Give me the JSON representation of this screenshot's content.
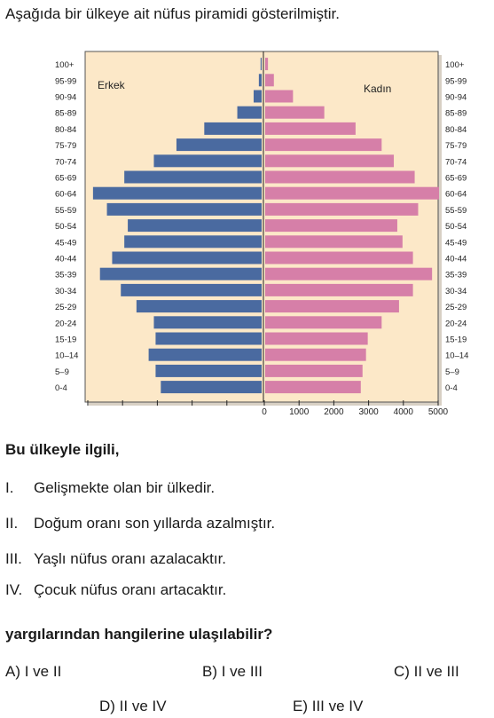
{
  "intro": "Aşağıda bir ülkeye ait nüfus piramidi gösterilmiştir.",
  "chart_data": {
    "type": "bar",
    "orientation": "horizontal",
    "chart_subtype": "population-pyramid",
    "categories": [
      "0-4",
      "5–9",
      "10–14",
      "15-19",
      "20-24",
      "25-29",
      "30-34",
      "35-39",
      "40-44",
      "45-49",
      "50-54",
      "55-59",
      "60-64",
      "65-69",
      "70-74",
      "75-79",
      "80-84",
      "85-89",
      "90-94",
      "95-99",
      "100+"
    ],
    "series": [
      {
        "name": "Erkek",
        "color": "#4a6aa0",
        "values": [
          2900,
          3050,
          3250,
          3050,
          3100,
          3600,
          4050,
          4650,
          4300,
          3950,
          3850,
          4450,
          4850,
          3950,
          3100,
          2450,
          1650,
          700,
          230,
          80,
          30
        ]
      },
      {
        "name": "Kadın",
        "color": "#d67fa8",
        "values": [
          2750,
          2800,
          2900,
          2950,
          3350,
          3850,
          4250,
          4800,
          4250,
          3950,
          3800,
          4400,
          5000,
          4300,
          3700,
          3350,
          2600,
          1700,
          800,
          250,
          80
        ]
      }
    ],
    "xticks": [
      0,
      1000,
      2000,
      3000,
      4000,
      5000
    ],
    "xlim": [
      0,
      5000
    ],
    "background_color": "#fce8c8",
    "legend_placement": "top-inside"
  },
  "lead": "Bu ülkeyle ilgili,",
  "statements": [
    {
      "num": "I.",
      "text": "Gelişmekte olan bir ülkedir."
    },
    {
      "num": "II.",
      "text": "Doğum oranı son yıllarda azalmıştır."
    },
    {
      "num": "III.",
      "text": "Yaşlı nüfus oranı azalacaktır."
    },
    {
      "num": "IV.",
      "text": "Çocuk nüfus oranı artacaktır."
    }
  ],
  "question": "yargılarından hangilerine ulaşılabilir?",
  "options": {
    "a": "A) I ve II",
    "b": "B) I ve III",
    "c": "C) II ve III",
    "d": "D) II ve IV",
    "e": "E) III ve IV"
  }
}
